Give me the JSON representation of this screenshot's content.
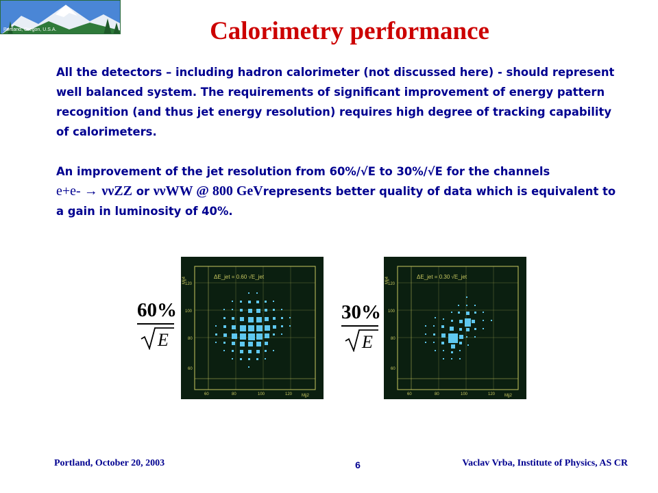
{
  "logo": {
    "caption": "Portland, Oregon, U.S.A.",
    "icon": "mountain-logo"
  },
  "title": "Calorimetry performance",
  "paragraph1": "All the detectors – including hadron calorimeter (not discussed here) - should represent well balanced system. The requirements of significant improvement of energy pattern recognition (and thus jet energy resolution) requires high degree of tracking capability of calorimeters.",
  "paragraph2": {
    "line1": "An improvement of the jet resolution from 60%/√E to 30%/√E for the channels",
    "process_start": "e+e- ",
    "arrow": "",
    "channel1": "ννZZ",
    "or_word": " or ",
    "channel2": "ννWW",
    "energy": " @ 800 GeV",
    "rest": "represents better quality of data which is equivalent to a gain in luminosity of 40%."
  },
  "figures": [
    {
      "fraction_numerator": "60%",
      "fraction_denominator": "E",
      "plot_label": "ΔE_jet = 0.60 √E_jet",
      "x_axis_label": "Mjj2",
      "y_axis_label": "Mjj4",
      "x_ticks": [
        "60",
        "80",
        "100",
        "120"
      ],
      "y_ticks": [
        "60",
        "80",
        "100",
        "120"
      ]
    },
    {
      "fraction_numerator": "30%",
      "fraction_denominator": "E",
      "plot_label": "ΔE_jet = 0.30 √E_jet",
      "x_axis_label": "Mjj2",
      "y_axis_label": "Mjj4",
      "x_ticks": [
        "60",
        "80",
        "100",
        "120"
      ],
      "y_ticks": [
        "60",
        "80",
        "100",
        "120"
      ]
    }
  ],
  "footer": {
    "left": "Portland, October 20, 2003",
    "page": "6",
    "right": "Vaclav Vrba, Institute of Physics, AS CR"
  },
  "colors": {
    "title": "#cc0000",
    "body_text": "#000090",
    "plot_bg": "#0b1f10",
    "plot_grid": "#c8c860",
    "plot_box": "#5fc8f0"
  }
}
